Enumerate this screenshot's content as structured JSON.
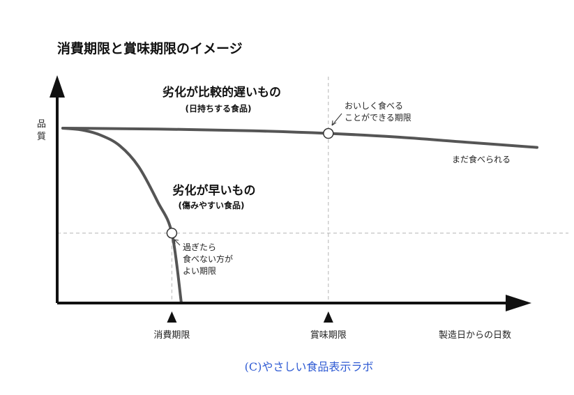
{
  "chart_data": {
    "type": "line",
    "title": "消費期限と賞味期限のイメージ",
    "ylabel": "品質",
    "xlabel": "製造日からの日数",
    "xlim": [
      0,
      100
    ],
    "ylim": [
      0,
      100
    ],
    "x_markers": [
      {
        "label": "消費期限",
        "x": 23
      },
      {
        "label": "賞味期限",
        "x": 56
      }
    ],
    "series": [
      {
        "heading": "劣化が比較的遅いもの",
        "subheading": "(日持ちする食品)",
        "x": [
          0,
          20,
          40,
          56,
          70,
          85,
          100
        ],
        "y": [
          100,
          99.5,
          98.5,
          97,
          95,
          92,
          89
        ]
      },
      {
        "heading": "劣化が早いもの",
        "subheading": "(傷みやすい食品)",
        "x": [
          0,
          4,
          8,
          12,
          16,
          20,
          23,
          25
        ],
        "y": [
          100,
          99,
          96,
          90,
          78,
          58,
          40,
          0
        ]
      }
    ],
    "annotations": [
      {
        "series": 0,
        "text_lines": [
          "おいしく食べる",
          "ことができる期限"
        ]
      },
      {
        "series": 0,
        "text_lines": [
          "まだ食べられる"
        ]
      },
      {
        "series": 1,
        "text_lines": [
          "過ぎたら",
          "食べない方が",
          "よい期限"
        ]
      }
    ],
    "grid": false
  },
  "footer": {
    "credit": "(C)やさしい食品表示ラボ",
    "credit_color": "#2f5bd3"
  },
  "colors": {
    "axis": "#111111",
    "curve": "#555555",
    "guide": "#b5b5b5"
  }
}
